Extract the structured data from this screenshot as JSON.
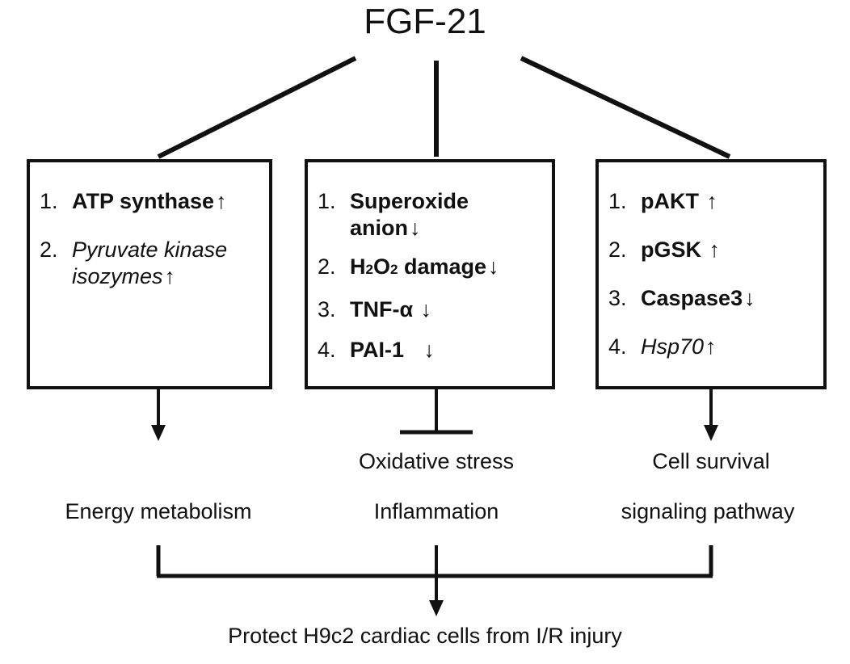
{
  "title": "FGF-21",
  "up_arrow": "↑",
  "down_arrow": "↓",
  "boxes": {
    "energy": {
      "items": [
        {
          "num": "1.",
          "text": "ATP synthase"
        },
        {
          "num": "2.",
          "text_line1": "Pyruvate kinase",
          "text_line2": "isozymes"
        }
      ]
    },
    "oxidative": {
      "items": [
        {
          "num": "1.",
          "text_line1": "Superoxide",
          "text_line2": "anion"
        },
        {
          "num": "2.",
          "text_pre": "H",
          "sub1": "2",
          "text_mid": "O",
          "sub2": "2",
          "text_post": " damage"
        },
        {
          "num": "3.",
          "text": "TNF-α"
        },
        {
          "num": "4.",
          "text": "PAI-1"
        }
      ]
    },
    "survival": {
      "items": [
        {
          "num": "1.",
          "text": "pAKT"
        },
        {
          "num": "2.",
          "text": "pGSK"
        },
        {
          "num": "3.",
          "text": "Caspase3"
        },
        {
          "num": "4.",
          "text": "Hsp70"
        }
      ]
    }
  },
  "outcomes": {
    "energy": "Energy metabolism",
    "oxidative_line1": "Oxidative stress",
    "oxidative_line2": "Inflammation",
    "survival_line1": "Cell survival",
    "survival_line2": "signaling pathway"
  },
  "conclusion": "Protect H9c2 cardiac cells from I/R injury"
}
